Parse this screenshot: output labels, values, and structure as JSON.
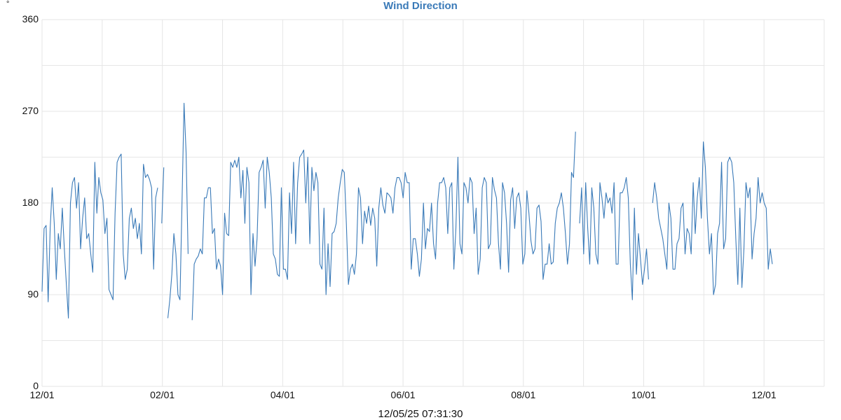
{
  "header": {
    "unit": "°",
    "title": "Wind Direction"
  },
  "footer": {
    "timestamp": "12/05/25 07:31:30"
  },
  "colors": {
    "line": "#3a7ab8",
    "grid": "#e6e6e6",
    "title": "#3a7ab8"
  },
  "chart_data": {
    "type": "line",
    "title": "Wind Direction",
    "xlabel": "",
    "ylabel": "°",
    "ylim": [
      0,
      360
    ],
    "yticks": [
      0,
      90,
      180,
      270,
      360
    ],
    "ygrid_step": 45,
    "xtick_labels": [
      "12/01",
      "02/01",
      "04/01",
      "06/01",
      "08/01",
      "10/01",
      "12/01"
    ],
    "grid": true,
    "legend": null,
    "series": [
      {
        "name": "Wind Direction",
        "values": [
          93,
          155,
          158,
          83,
          155,
          195,
          160,
          105,
          150,
          135,
          175,
          135,
          100,
          67,
          180,
          200,
          205,
          175,
          200,
          135,
          165,
          185,
          145,
          150,
          130,
          112,
          220,
          170,
          205,
          190,
          183,
          150,
          165,
          95,
          90,
          85,
          170,
          220,
          225,
          228,
          130,
          105,
          115,
          165,
          175,
          155,
          165,
          145,
          160,
          130,
          218,
          205,
          208,
          203,
          195,
          115,
          185,
          195,
          null,
          160,
          215,
          null,
          67,
          85,
          110,
          150,
          130,
          90,
          85,
          180,
          278,
          230,
          130,
          null,
          65,
          120,
          125,
          128,
          135,
          130,
          185,
          185,
          195,
          195,
          150,
          155,
          115,
          125,
          118,
          90,
          170,
          150,
          148,
          220,
          215,
          222,
          215,
          225,
          185,
          212,
          160,
          215,
          200,
          90,
          150,
          118,
          145,
          210,
          215,
          222,
          175,
          225,
          210,
          185,
          130,
          125,
          110,
          108,
          195,
          115,
          115,
          105,
          190,
          150,
          220,
          140,
          200,
          225,
          228,
          232,
          180,
          225,
          140,
          215,
          192,
          210,
          200,
          120,
          115,
          175,
          90,
          140,
          98,
          150,
          152,
          160,
          185,
          200,
          213,
          210,
          160,
          100,
          115,
          120,
          110,
          130,
          195,
          185,
          140,
          172,
          160,
          177,
          158,
          175,
          165,
          118,
          175,
          195,
          178,
          170,
          190,
          188,
          185,
          170,
          195,
          205,
          205,
          200,
          185,
          210,
          200,
          200,
          115,
          145,
          145,
          130,
          108,
          125,
          180,
          135,
          155,
          152,
          180,
          140,
          125,
          180,
          200,
          200,
          205,
          195,
          150,
          195,
          200,
          115,
          155,
          225,
          140,
          130,
          200,
          195,
          180,
          205,
          200,
          150,
          175,
          110,
          125,
          195,
          205,
          200,
          135,
          140,
          205,
          193,
          185,
          140,
          115,
          200,
          190,
          160,
          112,
          183,
          195,
          155,
          185,
          190,
          175,
          120,
          130,
          192,
          170,
          143,
          130,
          135,
          175,
          178,
          162,
          105,
          120,
          120,
          140,
          120,
          122,
          160,
          175,
          180,
          190,
          175,
          150,
          120,
          140,
          210,
          205,
          250,
          null,
          160,
          195,
          130,
          200,
          155,
          120,
          195,
          175,
          130,
          120,
          200,
          185,
          165,
          190,
          180,
          185,
          170,
          200,
          120,
          120,
          190,
          190,
          195,
          205,
          185,
          120,
          85,
          175,
          110,
          150,
          125,
          100,
          115,
          135,
          105,
          null,
          180,
          200,
          185,
          165,
          155,
          145,
          130,
          115,
          180,
          165,
          115,
          115,
          140,
          145,
          175,
          180,
          130,
          155,
          150,
          130,
          200,
          150,
          185,
          205,
          165,
          240,
          215,
          165,
          130,
          150,
          90,
          100,
          150,
          160,
          220,
          135,
          145,
          220,
          225,
          220,
          200,
          145,
          100,
          175,
          97,
          135,
          200,
          185,
          195,
          125,
          150,
          165,
          205,
          180,
          190,
          180,
          175,
          115,
          135,
          120
        ]
      }
    ]
  }
}
